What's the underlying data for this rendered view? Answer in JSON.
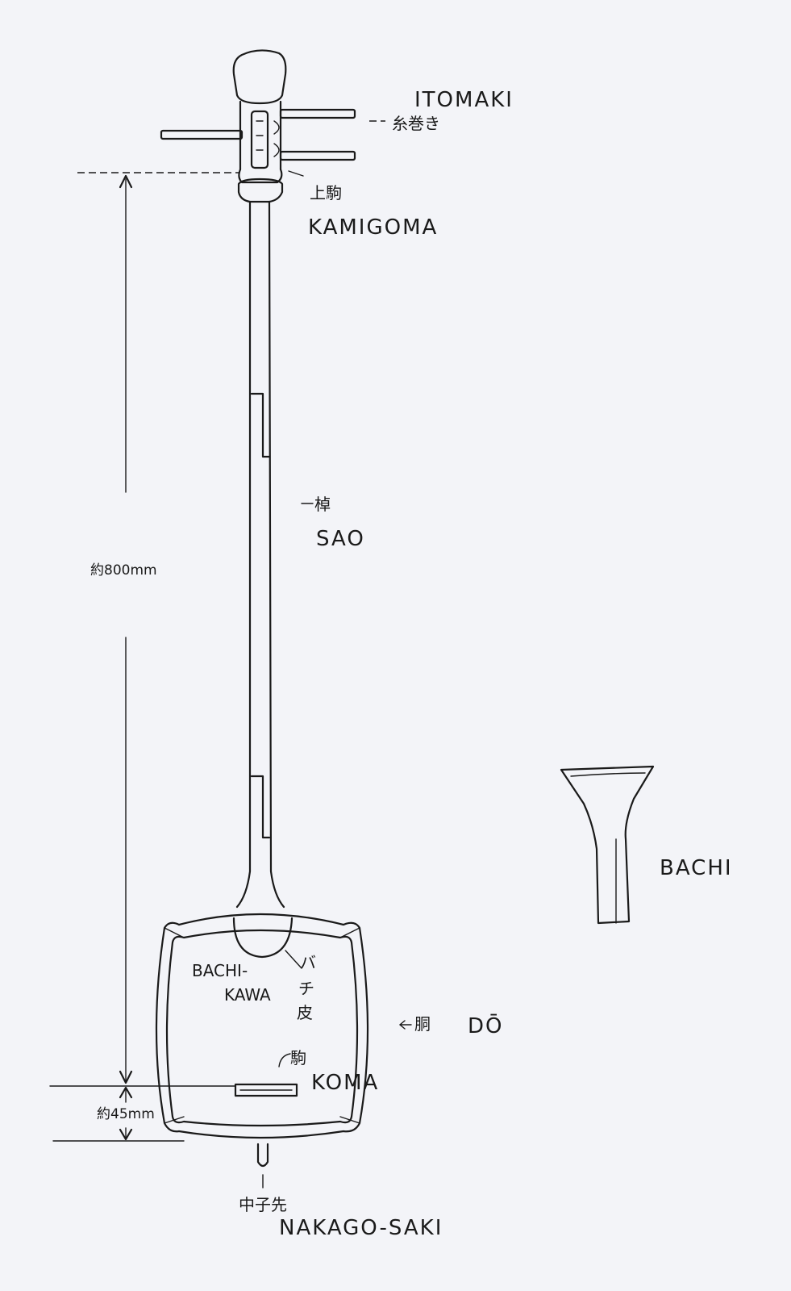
{
  "labels": {
    "itomaki_latin": "ITOMAKI",
    "itomaki_jp": "糸巻き",
    "kamigoma_jp": "上駒",
    "kamigoma_latin": "KAMIGOMA",
    "sao_jp": "棹",
    "sao_latin": "SAO",
    "length_dim": "約800mm",
    "bachikawa_latin_1": "BACHI-",
    "bachikawa_latin_2": "KAWA",
    "bachikawa_jp_1": "バ",
    "bachikawa_jp_2": "チ",
    "bachikawa_jp_3": "皮",
    "do_jp": "胴",
    "do_latin": "DŌ",
    "koma_jp": "駒",
    "koma_latin": "KOMA",
    "depth_dim": "約45mm",
    "nakagosaki_jp": "中子先",
    "nakagosaki_latin": "NAKAGO-SAKI",
    "bachi_latin": "BACHI"
  }
}
